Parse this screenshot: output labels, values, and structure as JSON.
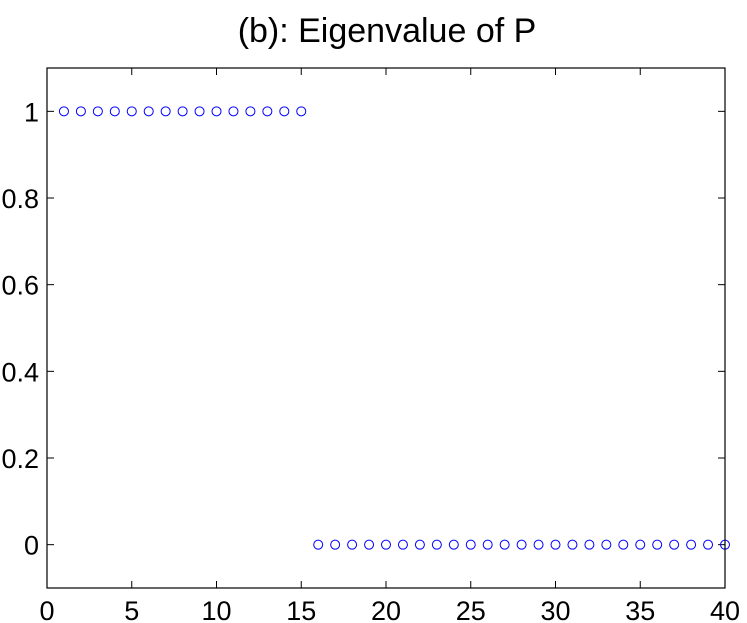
{
  "chart_data": {
    "type": "scatter",
    "title": "(b): Eigenvalue of P",
    "xlabel": "",
    "ylabel": "",
    "xlim": [
      0,
      40
    ],
    "ylim": [
      -0.1,
      1.1
    ],
    "grid": false,
    "marker": "circle",
    "marker_color": "#0000ff",
    "x_ticks": [
      0,
      5,
      10,
      15,
      20,
      25,
      30,
      35,
      40
    ],
    "x_tick_labels": [
      "0",
      "5",
      "10",
      "15",
      "20",
      "25",
      "30",
      "35",
      "40"
    ],
    "y_ticks": [
      0,
      0.2,
      0.4,
      0.6,
      0.8,
      1
    ],
    "y_tick_labels": [
      "0",
      "0.2",
      "0.4",
      "0.6",
      "0.8",
      "1"
    ],
    "series": [
      {
        "x": [
          1,
          2,
          3,
          4,
          5,
          6,
          7,
          8,
          9,
          10,
          11,
          12,
          13,
          14,
          15,
          16,
          17,
          18,
          19,
          20,
          21,
          22,
          23,
          24,
          25,
          26,
          27,
          28,
          29,
          30,
          31,
          32,
          33,
          34,
          35,
          36,
          37,
          38,
          39,
          40
        ],
        "y": [
          1,
          1,
          1,
          1,
          1,
          1,
          1,
          1,
          1,
          1,
          1,
          1,
          1,
          1,
          1,
          0,
          0,
          0,
          0,
          0,
          0,
          0,
          0,
          0,
          0,
          0,
          0,
          0,
          0,
          0,
          0,
          0,
          0,
          0,
          0,
          0,
          0,
          0,
          0,
          0
        ]
      }
    ]
  }
}
